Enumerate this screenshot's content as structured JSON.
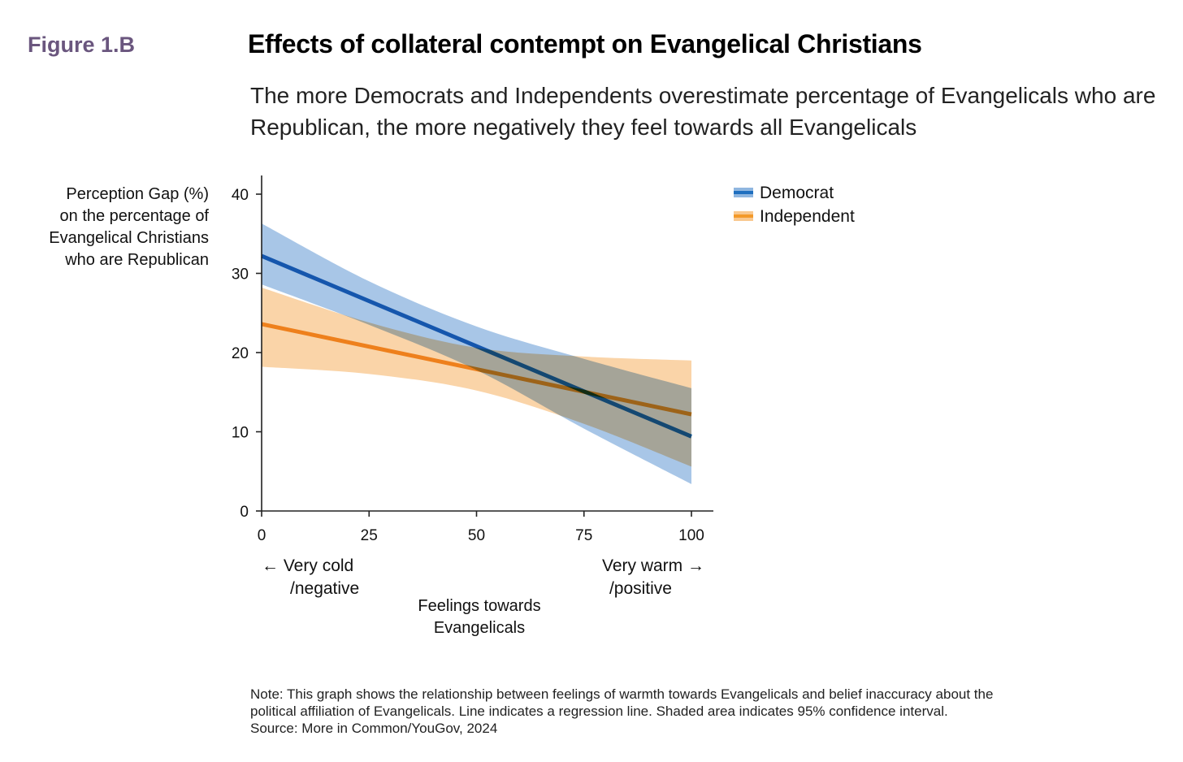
{
  "figure_label": "Figure 1.B",
  "title": "Effects of collateral contempt on Evangelical Christians",
  "subtitle": "The more Democrats and Independents overestimate percentage of Evangelicals who are Republican, the more negatively they feel towards all Evangelicals",
  "ylabel_lines": [
    "Perception Gap (%)",
    "on the percentage of",
    "Evangelical Christians",
    "who are Republican"
  ],
  "xlabel_lines": [
    "Feelings towards",
    "Evangelicals"
  ],
  "x_low_lines": [
    "← Very cold",
    "/negative"
  ],
  "x_high_lines": [
    "Very warm →",
    "/positive"
  ],
  "note_lines": [
    "Note: This graph shows the relationship between feelings of warmth towards Evangelicals and belief inaccuracy about the",
    "political affiliation of Evangelicals. Line indicates a regression line. Shaded area indicates 95% confidence interval.",
    "Source: More in Common/YouGov, 2024"
  ],
  "chart_data": {
    "type": "line",
    "xlim": [
      0,
      100
    ],
    "ylim": [
      0,
      42
    ],
    "xticks": [
      0,
      25,
      50,
      75,
      100
    ],
    "yticks": [
      0,
      10,
      20,
      30,
      40
    ],
    "grid": false,
    "legend_position": "top-right",
    "series": [
      {
        "name": "Democrat",
        "color": "#1f6fbf",
        "band_color": "#8fb6e0",
        "line": {
          "x": [
            0,
            100
          ],
          "y": [
            32.2,
            9.4
          ]
        },
        "ci": {
          "x": [
            0,
            25,
            50,
            75,
            100
          ],
          "upper": [
            36.3,
            29.0,
            23.3,
            19.2,
            15.5
          ],
          "lower": [
            28.6,
            23.5,
            17.8,
            10.4,
            3.4
          ]
        }
      },
      {
        "name": "Independent",
        "color": "#f39a2a",
        "band_color": "#f9c88f",
        "line": {
          "x": [
            0,
            100
          ],
          "y": [
            23.6,
            12.2
          ]
        },
        "ci": {
          "x": [
            0,
            25,
            50,
            75,
            100
          ],
          "upper": [
            28.2,
            23.8,
            20.6,
            19.5,
            19.0
          ],
          "lower": [
            18.2,
            17.3,
            15.2,
            11.0,
            5.6
          ]
        }
      }
    ]
  }
}
